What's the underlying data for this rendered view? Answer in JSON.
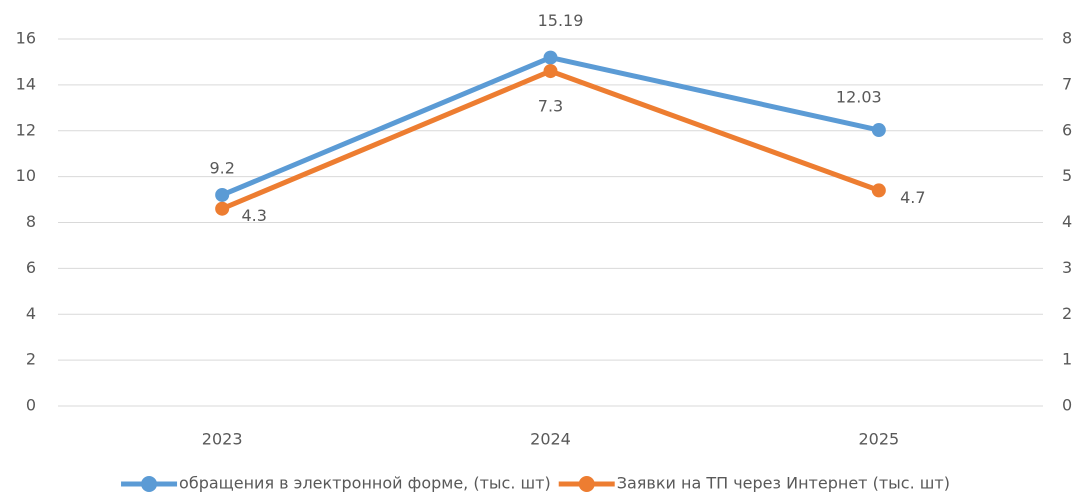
{
  "chart_data": {
    "type": "line",
    "categories": [
      "2023",
      "2024",
      "2025"
    ],
    "series": [
      {
        "name": "обращения в электронной форме, (тыс. шт)",
        "color": "#5b9bd5",
        "values": [
          9.2,
          15.19,
          12.03
        ]
      },
      {
        "name": "Заявки на ТП через Интернет (тыс. шт)",
        "color": "#ed7d31",
        "axis": "y2",
        "values": [
          4.3,
          7.3,
          4.7
        ]
      }
    ],
    "ylim": [
      0,
      16
    ],
    "yticks": [
      0,
      2,
      4,
      6,
      8,
      10,
      12,
      14,
      16
    ],
    "y2lim": [
      0,
      8
    ],
    "y2ticks": [
      0,
      1,
      2,
      3,
      4,
      5,
      6,
      7,
      8
    ],
    "grid": true,
    "legend": "bottom"
  }
}
